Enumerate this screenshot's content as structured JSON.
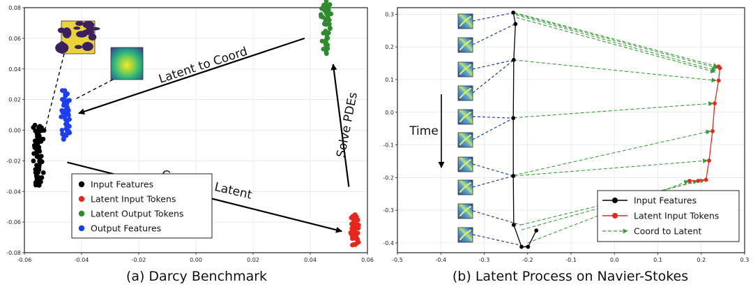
{
  "chart_data": [
    {
      "type": "scatter",
      "caption": "(a) Darcy Benchmark",
      "xlim": [
        -0.06,
        0.06
      ],
      "ylim": [
        -0.08,
        0.08
      ],
      "xticks": [
        -0.06,
        -0.04,
        -0.02,
        0.0,
        0.02,
        0.04,
        0.06
      ],
      "xtick_labels": [
        "-0.06",
        "-0.04",
        "-0.02",
        "0.00",
        "0.02",
        "0.04",
        "0.06"
      ],
      "yticks": [
        -0.08,
        -0.06,
        -0.04,
        -0.02,
        0.0,
        0.02,
        0.04,
        0.06,
        0.08
      ],
      "ytick_labels": [
        "-0.08",
        "-0.06",
        "-0.04",
        "-0.02",
        "0.00",
        "0.02",
        "0.04",
        "0.06",
        "0.08"
      ],
      "grid": true,
      "legend_position": "bottom-center",
      "series": [
        {
          "name": "Input Features",
          "color": "#000000",
          "x_center": -0.055,
          "x_spread": 0.0022,
          "y_range": [
            -0.036,
            0.004
          ],
          "count": 70
        },
        {
          "name": "Latent Input Tokens",
          "color": "#e8271c",
          "x_center": 0.0555,
          "x_spread": 0.0018,
          "y_range": [
            -0.075,
            -0.055
          ],
          "count": 45
        },
        {
          "name": "Latent Output Tokens",
          "color": "#2e8b2e",
          "x_center": 0.0455,
          "x_spread": 0.0022,
          "y_range": [
            0.05,
            0.085
          ],
          "count": 50
        },
        {
          "name": "Output Features",
          "color": "#1c3ef0",
          "x_center": -0.0455,
          "x_spread": 0.0018,
          "y_range": [
            -0.006,
            0.026
          ],
          "count": 50
        }
      ],
      "annotations": [
        {
          "text": "Latent to Coord",
          "from": [
            0.038,
            0.06
          ],
          "to": [
            -0.041,
            0.011
          ]
        },
        {
          "text": "Solve PDEs",
          "from": [
            0.0535,
            -0.037
          ],
          "to": [
            0.048,
            0.043
          ]
        },
        {
          "text": "Coord to Latent",
          "from": [
            -0.045,
            -0.021
          ],
          "to": [
            0.051,
            -0.066
          ]
        }
      ]
    },
    {
      "type": "line",
      "caption": "(b) Latent Process on Navier-Stokes",
      "xlim": [
        -0.5,
        0.3
      ],
      "ylim": [
        -0.43,
        0.32
      ],
      "xticks": [
        -0.5,
        -0.4,
        -0.3,
        -0.2,
        -0.1,
        0.0,
        0.1,
        0.2,
        0.3
      ],
      "xtick_labels": [
        "-0.5",
        "-0.4",
        "-0.3",
        "-0.2",
        "-0.1",
        "0.0",
        "0.1",
        "0.2",
        "0.3"
      ],
      "yticks": [
        -0.4,
        -0.3,
        -0.2,
        -0.1,
        0.0,
        0.1,
        0.2,
        0.3
      ],
      "ytick_labels": [
        "-0.4",
        "-0.3",
        "-0.2",
        "-0.1",
        "0.0",
        "0.1",
        "0.2",
        "0.3"
      ],
      "grid": true,
      "legend_position": "bottom-right",
      "time_label": "Time",
      "series": [
        {
          "name": "Input Features",
          "color": "#000000",
          "x": [
            -0.233,
            -0.228,
            -0.232,
            -0.233,
            -0.233,
            -0.232,
            -0.214,
            -0.199,
            -0.18
          ],
          "y": [
            0.305,
            0.27,
            0.16,
            -0.018,
            -0.195,
            -0.345,
            -0.412,
            -0.412,
            -0.362
          ]
        },
        {
          "name": "Latent Input Tokens",
          "color": "#e8271c",
          "x": [
            0.24,
            0.243,
            0.24,
            0.231,
            0.226,
            0.218,
            0.211,
            0.193,
            0.173
          ],
          "y": [
            0.14,
            0.135,
            0.097,
            0.027,
            -0.058,
            -0.148,
            -0.207,
            -0.21,
            -0.21
          ]
        },
        {
          "name": "Coord to Latent",
          "color": "#3a9a3a",
          "style": "dashed-arrow",
          "segments": [
            [
              -0.231,
              0.305,
              0.238,
              0.14
            ],
            [
              -0.229,
              0.302,
              0.238,
              0.135
            ],
            [
              -0.227,
              0.298,
              0.233,
              0.128
            ],
            [
              -0.226,
              0.29,
              0.232,
              0.123
            ],
            [
              -0.232,
              0.16,
              0.234,
              0.097
            ],
            [
              -0.232,
              -0.017,
              0.227,
              0.027
            ],
            [
              -0.232,
              -0.193,
              0.221,
              -0.058
            ],
            [
              -0.23,
              -0.195,
              0.214,
              -0.148
            ],
            [
              -0.216,
              -0.345,
              0.208,
              -0.207
            ],
            [
              -0.214,
              -0.36,
              0.191,
              -0.21
            ],
            [
              -0.2,
              -0.4,
              0.171,
              -0.21
            ]
          ]
        }
      ]
    }
  ]
}
